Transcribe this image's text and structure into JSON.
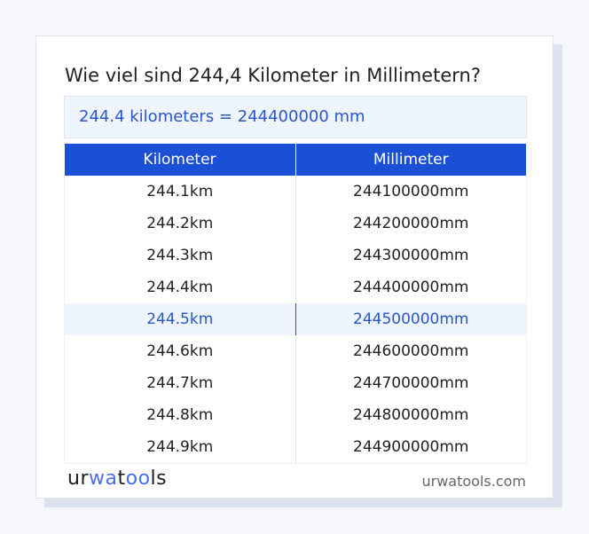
{
  "title": "Wie viel sind 244,4 Kilometer in Millimetern?",
  "result": "244.4 kilometers = 244400000 mm",
  "table": {
    "headers": [
      "Kilometer",
      "Millimeter"
    ],
    "rows": [
      [
        "244.1km",
        "244100000mm"
      ],
      [
        "244.2km",
        "244200000mm"
      ],
      [
        "244.3km",
        "244300000mm"
      ],
      [
        "244.4km",
        "244400000mm"
      ],
      [
        "244.5km",
        "244500000mm"
      ],
      [
        "244.6km",
        "244600000mm"
      ],
      [
        "244.7km",
        "244700000mm"
      ],
      [
        "244.8km",
        "244800000mm"
      ],
      [
        "244.9km",
        "244900000mm"
      ]
    ],
    "highlighted_row": 4
  },
  "footer": {
    "logo": "urwatools",
    "logo_parts": [
      "ur",
      "wa",
      "t",
      "oo",
      "ls"
    ],
    "site": "urwatools.com"
  },
  "colors": {
    "header": "#1a4fd6",
    "accent": "#2a55c9",
    "highlight_bg": "#eef5fe"
  }
}
